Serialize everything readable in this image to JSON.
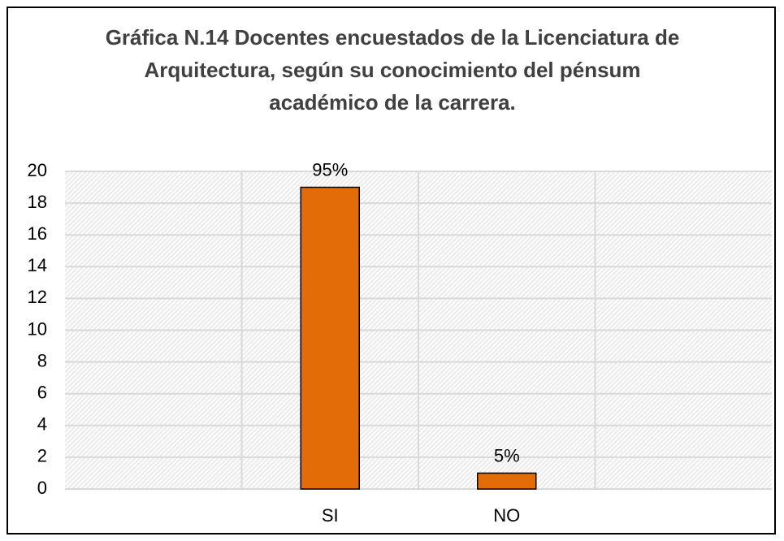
{
  "chart_data": {
    "type": "bar",
    "title": "Gráfica N.14 Docentes encuestados de la Licenciatura de Arquitectura, según su conocimiento del pénsum académico de la carrera.",
    "categories": [
      null,
      "SI",
      "NO",
      null
    ],
    "values": [
      null,
      19,
      1,
      null
    ],
    "value_labels": [
      null,
      "95%",
      "5%",
      null
    ],
    "color": "#e36c09",
    "ylim": [
      0,
      20
    ],
    "yticks": [
      0,
      2,
      4,
      6,
      8,
      10,
      12,
      14,
      16,
      18,
      20
    ],
    "grid": true
  }
}
